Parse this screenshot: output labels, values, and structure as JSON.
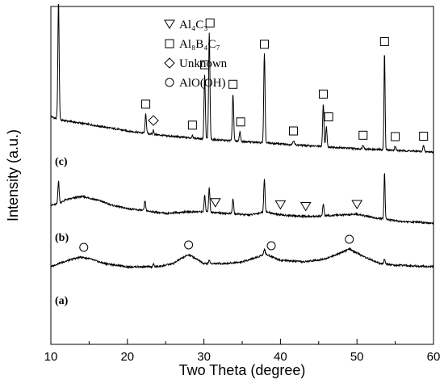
{
  "chart_data": {
    "type": "line",
    "xlabel": "Two Theta (degree)",
    "ylabel": "Intensity (a.u.)",
    "xlim": [
      10,
      60
    ],
    "x_ticks": [
      10,
      20,
      30,
      40,
      50,
      60
    ],
    "y_ticks": "none",
    "grid": false,
    "legend_position": "top-left",
    "legend": [
      {
        "symbol": "triangle-down",
        "label": "Al₄C₃"
      },
      {
        "symbol": "square",
        "label": "Al₈B₄C₇"
      },
      {
        "symbol": "diamond",
        "label": "Unknown"
      },
      {
        "symbol": "circle",
        "label": "AlO(OH)"
      }
    ],
    "series": [
      {
        "name": "(c)",
        "baseline": [
          [
            10,
            54
          ],
          [
            11,
            50
          ],
          [
            15,
            44
          ],
          [
            20,
            36
          ],
          [
            25,
            30
          ],
          [
            30,
            26
          ],
          [
            35,
            23
          ],
          [
            40,
            20
          ],
          [
            45,
            17
          ],
          [
            50,
            14
          ],
          [
            55,
            12
          ],
          [
            60,
            10
          ]
        ],
        "peaks": [
          {
            "x": 11.0,
            "h": 146,
            "w": 0.12
          },
          {
            "x": 22.4,
            "h": 24,
            "w": 0.12
          },
          {
            "x": 23.4,
            "h": 5,
            "w": 0.1
          },
          {
            "x": 28.5,
            "h": 4,
            "w": 0.1
          },
          {
            "x": 30.1,
            "h": 80,
            "w": 0.12
          },
          {
            "x": 30.7,
            "h": 132,
            "w": 0.12
          },
          {
            "x": 33.8,
            "h": 58,
            "w": 0.12
          },
          {
            "x": 34.7,
            "h": 12,
            "w": 0.12
          },
          {
            "x": 37.9,
            "h": 110,
            "w": 0.12
          },
          {
            "x": 41.7,
            "h": 5,
            "w": 0.15
          },
          {
            "x": 45.6,
            "h": 53,
            "w": 0.12
          },
          {
            "x": 46.0,
            "h": 25,
            "w": 0.12
          },
          {
            "x": 50.8,
            "h": 5,
            "w": 0.15
          },
          {
            "x": 53.6,
            "h": 122,
            "w": 0.1
          },
          {
            "x": 55.0,
            "h": 5,
            "w": 0.12
          },
          {
            "x": 58.7,
            "h": 7,
            "w": 0.12
          }
        ],
        "markers": [
          {
            "x": 11.0,
            "symbol": "square"
          },
          {
            "x": 22.4,
            "symbol": "square"
          },
          {
            "x": 23.4,
            "symbol": "diamond"
          },
          {
            "x": 28.5,
            "symbol": "square"
          },
          {
            "x": 30.1,
            "symbol": "square"
          },
          {
            "x": 30.8,
            "symbol": "square"
          },
          {
            "x": 33.8,
            "symbol": "square"
          },
          {
            "x": 34.8,
            "symbol": "square"
          },
          {
            "x": 37.9,
            "symbol": "square"
          },
          {
            "x": 41.7,
            "symbol": "square"
          },
          {
            "x": 45.6,
            "symbol": "square"
          },
          {
            "x": 46.3,
            "symbol": "square"
          },
          {
            "x": 50.8,
            "symbol": "square"
          },
          {
            "x": 53.6,
            "symbol": "square"
          },
          {
            "x": 55.0,
            "symbol": "square"
          },
          {
            "x": 58.7,
            "symbol": "square"
          }
        ]
      },
      {
        "name": "(b)",
        "baseline": [
          [
            10,
            38
          ],
          [
            11,
            40
          ],
          [
            12,
            45
          ],
          [
            14,
            49
          ],
          [
            16,
            45
          ],
          [
            18,
            38
          ],
          [
            20,
            34
          ],
          [
            25,
            28
          ],
          [
            28,
            30
          ],
          [
            30,
            30
          ],
          [
            33,
            28
          ],
          [
            36,
            26
          ],
          [
            38,
            30
          ],
          [
            40,
            26
          ],
          [
            44,
            24
          ],
          [
            48,
            26
          ],
          [
            50,
            27
          ],
          [
            52,
            23
          ],
          [
            56,
            18
          ],
          [
            60,
            16
          ]
        ],
        "peaks": [
          {
            "x": 11.0,
            "h": 28,
            "w": 0.12
          },
          {
            "x": 22.3,
            "h": 12,
            "w": 0.12
          },
          {
            "x": 30.1,
            "h": 20,
            "w": 0.12
          },
          {
            "x": 30.7,
            "h": 30,
            "w": 0.12
          },
          {
            "x": 33.8,
            "h": 18,
            "w": 0.12
          },
          {
            "x": 37.9,
            "h": 40,
            "w": 0.12
          },
          {
            "x": 45.6,
            "h": 15,
            "w": 0.12
          },
          {
            "x": 53.6,
            "h": 58,
            "w": 0.1
          }
        ],
        "markers": [
          {
            "x": 31.5,
            "symbol": "triangle-down"
          },
          {
            "x": 40.0,
            "symbol": "triangle-down"
          },
          {
            "x": 43.3,
            "symbol": "triangle-down"
          },
          {
            "x": 50.0,
            "symbol": "triangle-down"
          }
        ]
      },
      {
        "name": "(a)",
        "baseline": [
          [
            10,
            40
          ],
          [
            11,
            44
          ],
          [
            13,
            50
          ],
          [
            14,
            52
          ],
          [
            15,
            50
          ],
          [
            17,
            44
          ],
          [
            20,
            40
          ],
          [
            24,
            40
          ],
          [
            26,
            44
          ],
          [
            27,
            50
          ],
          [
            28,
            55
          ],
          [
            29,
            50
          ],
          [
            30,
            44
          ],
          [
            33,
            44
          ],
          [
            35,
            46
          ],
          [
            37,
            52
          ],
          [
            38,
            56
          ],
          [
            40,
            48
          ],
          [
            43,
            46
          ],
          [
            46,
            50
          ],
          [
            48,
            58
          ],
          [
            49,
            62
          ],
          [
            51,
            52
          ],
          [
            53,
            44
          ],
          [
            55,
            42
          ],
          [
            60,
            40
          ]
        ],
        "peaks": [
          {
            "x": 23.4,
            "h": 3,
            "w": 0.12
          },
          {
            "x": 30.7,
            "h": 4,
            "w": 0.12
          },
          {
            "x": 37.9,
            "h": 6,
            "w": 0.12
          },
          {
            "x": 53.6,
            "h": 6,
            "w": 0.12
          }
        ],
        "markers": [
          {
            "x": 14.3,
            "symbol": "circle"
          },
          {
            "x": 28.0,
            "symbol": "circle"
          },
          {
            "x": 38.8,
            "symbol": "circle"
          },
          {
            "x": 49.0,
            "symbol": "circle"
          }
        ]
      }
    ]
  }
}
